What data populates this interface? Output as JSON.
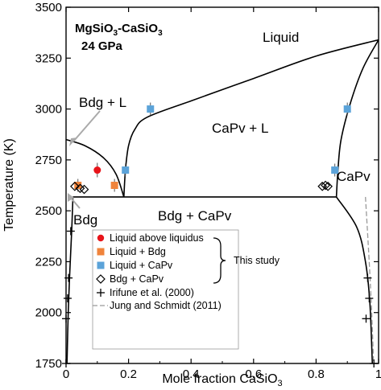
{
  "chart_data": {
    "type": "scatter",
    "title": {
      "system_main": "MgSiO",
      "system_sub1": "3",
      "system_mid": "-CaSiO",
      "system_sub2": "3",
      "pressure": "24 GPa"
    },
    "xlabel_main": "Mole fraction CaSiO",
    "xlabel_sub": "3",
    "ylabel": "Temperature (K)",
    "xlim": [
      0,
      1
    ],
    "ylim": [
      1750,
      3500
    ],
    "x_ticks": [
      {
        "value": 0,
        "label": "0"
      },
      {
        "value": 0.2,
        "label": "0.2"
      },
      {
        "value": 0.4,
        "label": "0.4"
      },
      {
        "value": 0.6,
        "label": "0.6"
      },
      {
        "value": 0.8,
        "label": "0.8"
      },
      {
        "value": 1.0,
        "label": "1"
      }
    ],
    "y_ticks": [
      {
        "value": 1750,
        "label": "1750"
      },
      {
        "value": 2000,
        "label": "2000"
      },
      {
        "value": 2250,
        "label": "2250"
      },
      {
        "value": 2500,
        "label": "2500"
      },
      {
        "value": 2750,
        "label": "2750"
      },
      {
        "value": 3000,
        "label": "3000"
      },
      {
        "value": 3250,
        "label": "3250"
      },
      {
        "value": 3500,
        "label": "3500"
      }
    ],
    "phase_labels": {
      "liquid": "Liquid",
      "bdg_l": "Bdg + L",
      "capv_l": "CaPv + L",
      "capv": "CaPv",
      "bdg": "Bdg",
      "bdg_capv": "Bdg + CaPv"
    },
    "phase_boundaries": [
      {
        "id": "liquidus-bdg",
        "points": [
          [
            0,
            2850
          ],
          [
            0.06,
            2820
          ],
          [
            0.12,
            2760
          ],
          [
            0.16,
            2680
          ],
          [
            0.185,
            2568
          ]
        ]
      },
      {
        "id": "liquidus-capv",
        "points": [
          [
            0.185,
            2568
          ],
          [
            0.19,
            2700
          ],
          [
            0.2,
            2820
          ],
          [
            0.22,
            2900
          ],
          [
            0.26,
            2960
          ],
          [
            0.4,
            3040
          ],
          [
            0.6,
            3150
          ],
          [
            0.8,
            3260
          ],
          [
            1.0,
            3340
          ]
        ]
      },
      {
        "id": "solidus-capv-left",
        "points": [
          [
            0.865,
            2568
          ],
          [
            0.87,
            2700
          ],
          [
            0.88,
            2850
          ],
          [
            0.91,
            3030
          ],
          [
            0.95,
            3200
          ],
          [
            1.0,
            3340
          ]
        ]
      },
      {
        "id": "eutectic",
        "points": [
          [
            0.022,
            2568
          ],
          [
            0.865,
            2568
          ]
        ]
      },
      {
        "id": "bdg-solvus",
        "points": [
          [
            0.022,
            2568
          ],
          [
            0.018,
            2400
          ],
          [
            0.012,
            2200
          ],
          [
            0.007,
            2000
          ],
          [
            0.003,
            1750
          ]
        ]
      },
      {
        "id": "capv-solvus",
        "points": [
          [
            0.865,
            2568
          ],
          [
            0.93,
            2420
          ],
          [
            0.958,
            2250
          ],
          [
            0.972,
            2050
          ],
          [
            0.98,
            1750
          ]
        ]
      }
    ],
    "jung_schmidt_boundary": [
      [
        0.958,
        2568
      ],
      [
        0.97,
        2250
      ],
      [
        0.978,
        2000
      ],
      [
        0.984,
        1750
      ]
    ],
    "series": [
      {
        "name": "Liquid above liquidus",
        "marker": "filled-circle",
        "color": "#e8141a",
        "points": [
          [
            0.1,
            2700
          ]
        ]
      },
      {
        "name": "Liquid + Bdg",
        "marker": "filled-square",
        "color": "#f0843c",
        "points": [
          [
            0.038,
            2625
          ],
          [
            0.155,
            2625
          ]
        ]
      },
      {
        "name": "Liquid + CaPv",
        "marker": "filled-square",
        "color": "#5ba3d9",
        "points": [
          [
            0.19,
            2700
          ],
          [
            0.27,
            3000
          ],
          [
            0.86,
            2700
          ],
          [
            0.9,
            3000
          ]
        ]
      },
      {
        "name": "Bdg + CaPv",
        "marker": "open-diamond",
        "color": "#000000",
        "points": [
          [
            0.028,
            2620
          ],
          [
            0.045,
            2610
          ],
          [
            0.058,
            2605
          ],
          [
            0.82,
            2620
          ],
          [
            0.83,
            2625
          ],
          [
            0.838,
            2620
          ]
        ]
      },
      {
        "name": "Irifune et al. (2000)",
        "marker": "plus",
        "color": "#000000",
        "points": [
          [
            0.0,
            1750
          ],
          [
            0.0,
            1970
          ],
          [
            0.005,
            2070
          ],
          [
            0.008,
            2170
          ],
          [
            0.015,
            2400
          ],
          [
            0.965,
            2170
          ],
          [
            0.97,
            2070
          ],
          [
            0.96,
            1970
          ],
          [
            0.985,
            1750
          ]
        ]
      },
      {
        "name": "Jung and Schmidt (2011)",
        "marker": "dashed-line",
        "color": "#999999",
        "points": []
      }
    ],
    "annotation": "This study",
    "legend_position": "lower-center"
  }
}
